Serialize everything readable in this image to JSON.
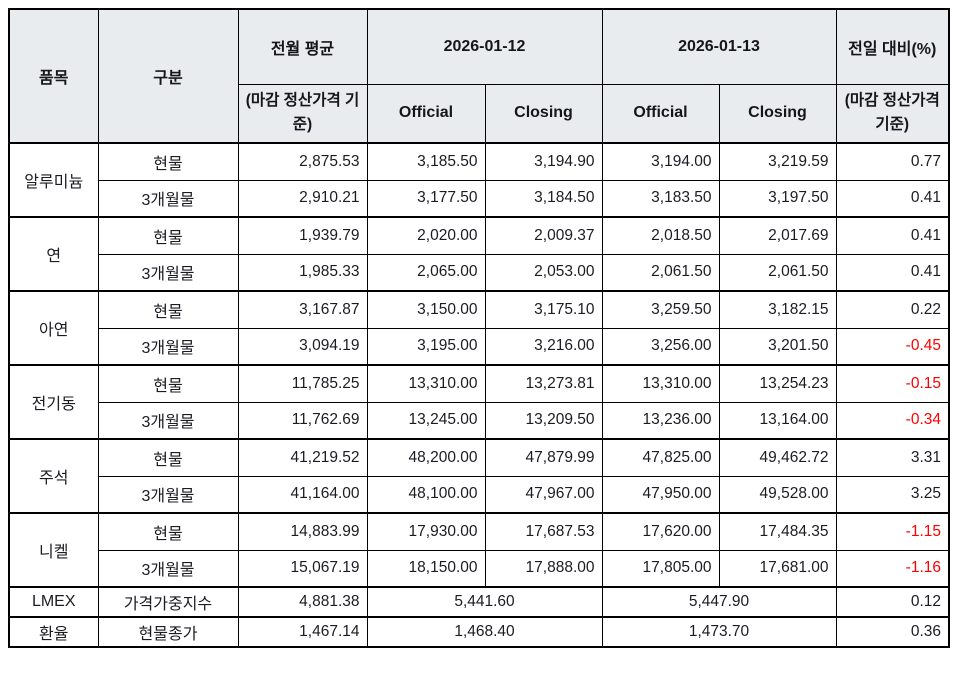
{
  "table": {
    "headers": {
      "item": "품목",
      "category": "구분",
      "prev_month_avg": "전월 평균",
      "prev_month_avg_note": "(마감 정산가격 기준)",
      "date1": "2026-01-12",
      "date2": "2026-01-13",
      "official1": "Official",
      "closing1": "Closing",
      "official2": "Official",
      "closing2": "Closing",
      "day_over_day": "전일 대비(%)",
      "day_over_day_note": "(마감 정산가격 기준)"
    },
    "groups": [
      {
        "item": "알루미늄",
        "rows": [
          {
            "category": "현물",
            "values": [
              "2,875.53",
              "3,185.50",
              "3,194.90",
              "3,194.00",
              "3,219.59",
              "0.77"
            ]
          },
          {
            "category": "3개월물",
            "values": [
              "2,910.21",
              "3,177.50",
              "3,184.50",
              "3,183.50",
              "3,197.50",
              "0.41"
            ]
          }
        ]
      },
      {
        "item": "연",
        "rows": [
          {
            "category": "현물",
            "values": [
              "1,939.79",
              "2,020.00",
              "2,009.37",
              "2,018.50",
              "2,017.69",
              "0.41"
            ]
          },
          {
            "category": "3개월물",
            "values": [
              "1,985.33",
              "2,065.00",
              "2,053.00",
              "2,061.50",
              "2,061.50",
              "0.41"
            ]
          }
        ]
      },
      {
        "item": "아연",
        "rows": [
          {
            "category": "현물",
            "values": [
              "3,167.87",
              "3,150.00",
              "3,175.10",
              "3,259.50",
              "3,182.15",
              "0.22"
            ]
          },
          {
            "category": "3개월물",
            "values": [
              "3,094.19",
              "3,195.00",
              "3,216.00",
              "3,256.00",
              "3,201.50",
              "-0.45"
            ]
          }
        ]
      },
      {
        "item": "전기동",
        "rows": [
          {
            "category": "현물",
            "values": [
              "11,785.25",
              "13,310.00",
              "13,273.81",
              "13,310.00",
              "13,254.23",
              "-0.15"
            ]
          },
          {
            "category": "3개월물",
            "values": [
              "11,762.69",
              "13,245.00",
              "13,209.50",
              "13,236.00",
              "13,164.00",
              "-0.34"
            ]
          }
        ]
      },
      {
        "item": "주석",
        "rows": [
          {
            "category": "현물",
            "values": [
              "41,219.52",
              "48,200.00",
              "47,879.99",
              "47,825.00",
              "49,462.72",
              "3.31"
            ]
          },
          {
            "category": "3개월물",
            "values": [
              "41,164.00",
              "48,100.00",
              "47,967.00",
              "47,950.00",
              "49,528.00",
              "3.25"
            ]
          }
        ]
      },
      {
        "item": "니켈",
        "rows": [
          {
            "category": "현물",
            "values": [
              "14,883.99",
              "17,930.00",
              "17,687.53",
              "17,620.00",
              "17,484.35",
              "-1.15"
            ]
          },
          {
            "category": "3개월물",
            "values": [
              "15,067.19",
              "18,150.00",
              "17,888.00",
              "17,805.00",
              "17,681.00",
              "-1.16"
            ]
          }
        ]
      }
    ],
    "summary_rows": [
      {
        "item": "LMEX",
        "category": "가격가중지수",
        "prev": "4,881.38",
        "date1_value": "5,441.60",
        "date2_value": "5,447.90",
        "dod": "0.12"
      },
      {
        "item": "환율",
        "category": "현물종가",
        "prev": "1,467.14",
        "date1_value": "1,468.40",
        "date2_value": "1,473.70",
        "dod": "0.36"
      }
    ]
  },
  "colors": {
    "negative_text": "#ff0000",
    "header_background": "#e9ecef",
    "border": "#000000",
    "body_text": "#1b1b22"
  }
}
